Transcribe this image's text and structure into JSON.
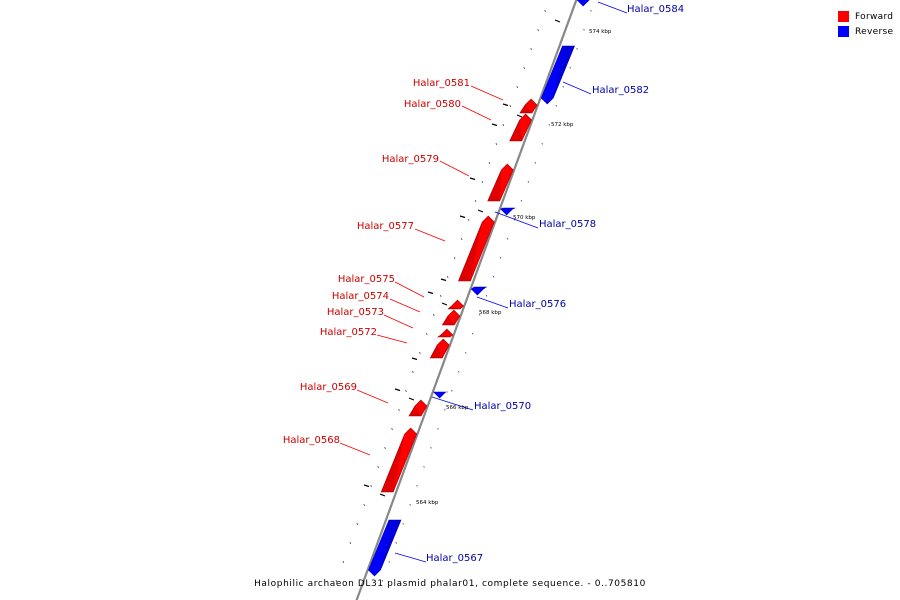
{
  "legend": {
    "forward": {
      "label": "Forward",
      "color": "#ff0000"
    },
    "reverse": {
      "label": "Reverse",
      "color": "#0000ff"
    }
  },
  "colors": {
    "forward_label": "#cc0000",
    "reverse_label": "#0000aa",
    "backbone": "#888888"
  },
  "caption": "Halophilic archaeon DL31 plasmid phalar01, complete sequence. - 0..705810",
  "genes": [
    {
      "name": "Halar_0584",
      "strand": "reverse"
    },
    {
      "name": "Halar_0582",
      "strand": "reverse"
    },
    {
      "name": "Halar_0581",
      "strand": "forward"
    },
    {
      "name": "Halar_0580",
      "strand": "forward"
    },
    {
      "name": "Halar_0579",
      "strand": "forward"
    },
    {
      "name": "Halar_0578",
      "strand": "reverse"
    },
    {
      "name": "Halar_0577",
      "strand": "forward"
    },
    {
      "name": "Halar_0576",
      "strand": "reverse"
    },
    {
      "name": "Halar_0575",
      "strand": "forward"
    },
    {
      "name": "Halar_0574",
      "strand": "forward"
    },
    {
      "name": "Halar_0573",
      "strand": "forward"
    },
    {
      "name": "Halar_0572",
      "strand": "forward"
    },
    {
      "name": "Halar_0570",
      "strand": "reverse"
    },
    {
      "name": "Halar_0569",
      "strand": "forward"
    },
    {
      "name": "Halar_0568",
      "strand": "forward"
    },
    {
      "name": "Halar_0567",
      "strand": "reverse"
    }
  ],
  "kbp_labels": [
    "574 kbp",
    "572 kbp",
    "570 kbp",
    "568 kbp",
    "566 kbp",
    "564 kbp"
  ]
}
